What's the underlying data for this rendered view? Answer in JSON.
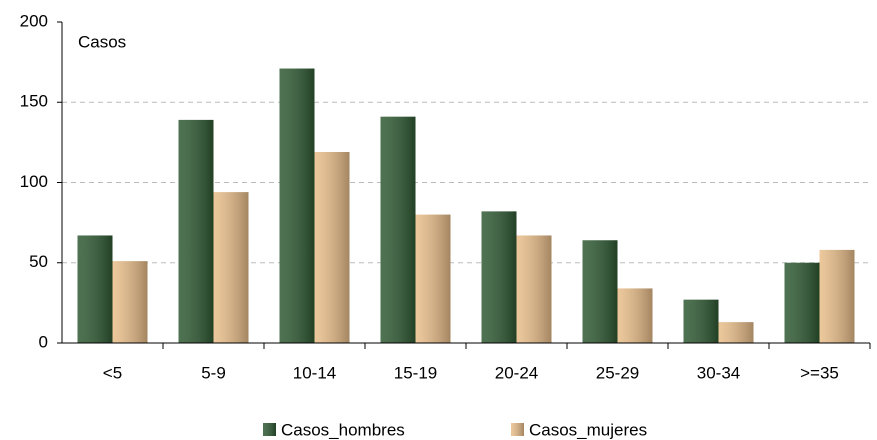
{
  "chart_data": {
    "type": "bar",
    "y_label": "Casos",
    "categories": [
      "<5",
      "5-9",
      "10-14",
      "15-19",
      "20-24",
      "25-29",
      "30-34",
      ">=35"
    ],
    "series": [
      {
        "name": "Casos_hombres",
        "color": "#2f5a33",
        "values": [
          67,
          139,
          171,
          141,
          82,
          64,
          27,
          50
        ]
      },
      {
        "name": "Casos_mujeres",
        "color": "#e9be8a",
        "values": [
          51,
          94,
          119,
          80,
          67,
          34,
          13,
          58
        ]
      }
    ],
    "ylim": [
      0,
      200
    ],
    "yticks": [
      0,
      50,
      100,
      150,
      200
    ],
    "grid": true
  }
}
